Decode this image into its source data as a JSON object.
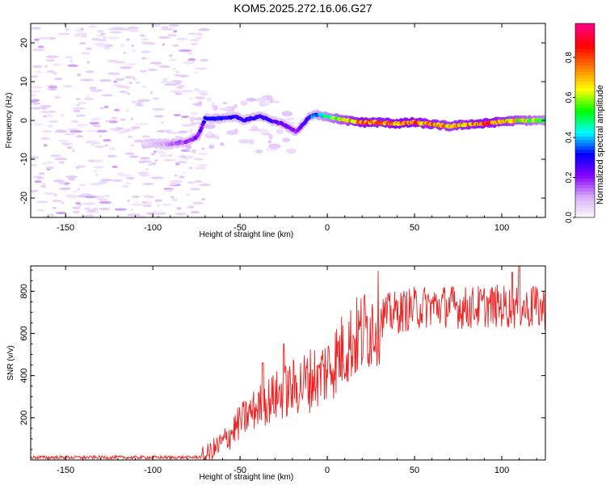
{
  "title": "KOM5.2025.272.16.06.G27",
  "chart_data": [
    {
      "type": "heatmap",
      "title": "KOM5.2025.272.16.06.G27",
      "xlabel": "Height of straight line (km)",
      "ylabel": "Frequency (Hz)",
      "xlim": [
        -170,
        125
      ],
      "ylim": [
        -25,
        25
      ],
      "xticks": [
        -150,
        -100,
        -50,
        0,
        50,
        100
      ],
      "yticks": [
        -20,
        -10,
        0,
        10,
        20
      ],
      "colorbar": {
        "label": "Normalized spectral amplitude",
        "range": [
          0,
          0.97
        ],
        "ticks": [
          0.0,
          0.2,
          0.4,
          0.6,
          0.8
        ],
        "colormap": [
          "#ffffff",
          "#d8b0f8",
          "#8800ff",
          "#0000ff",
          "#00ffff",
          "#00ff00",
          "#ffff00",
          "#ff8000",
          "#ff0000",
          "#ff0080"
        ]
      },
      "signal_track": {
        "x": [
          -105,
          -90,
          -80,
          -74,
          -70,
          -60,
          -52,
          -48,
          -44,
          -38,
          -32,
          -25,
          -18,
          -14,
          -10,
          -6,
          0,
          10,
          20,
          30,
          40,
          50,
          60,
          70,
          80,
          90,
          100,
          110,
          120,
          125
        ],
        "freq": [
          -6,
          -6,
          -5.5,
          -4,
          0.5,
          0.5,
          1,
          0,
          0.5,
          1,
          0,
          -1,
          -3,
          -1,
          1,
          1.5,
          1,
          0,
          -0.5,
          -0.5,
          -0.8,
          -0.5,
          -1,
          -1.5,
          -1,
          -0.8,
          -0.3,
          0,
          0,
          0
        ],
        "amplitude": [
          0.05,
          0.15,
          0.2,
          0.25,
          0.3,
          0.35,
          0.3,
          0.3,
          0.35,
          0.35,
          0.3,
          0.25,
          0.2,
          0.25,
          0.35,
          0.45,
          0.55,
          0.7,
          0.85,
          0.8,
          0.9,
          0.85,
          0.8,
          0.75,
          0.8,
          0.85,
          0.8,
          0.7,
          0.6,
          0.55
        ]
      }
    },
    {
      "type": "line",
      "title": "",
      "xlabel": "Height of straight line (km)",
      "ylabel": "SNR (v/v)",
      "xlim": [
        -170,
        125
      ],
      "ylim": [
        0,
        920
      ],
      "xticks": [
        -150,
        -100,
        -50,
        0,
        50,
        100
      ],
      "yticks": [
        200,
        400,
        600,
        800
      ],
      "series": [
        {
          "name": "SNR",
          "color": "#ee2222",
          "trend_x": [
            -170,
            -120,
            -80,
            -70,
            -60,
            -50,
            -40,
            -30,
            -20,
            -10,
            0,
            10,
            20,
            30,
            40,
            50,
            60,
            70,
            80,
            90,
            100,
            110,
            125
          ],
          "trend_y": [
            12,
            12,
            12,
            15,
            80,
            180,
            250,
            300,
            340,
            380,
            430,
            530,
            600,
            680,
            700,
            720,
            730,
            730,
            720,
            730,
            730,
            720,
            720
          ],
          "peaks": [
            [
              -25,
              550
            ],
            [
              -37,
              460
            ],
            [
              -5,
              450
            ],
            [
              110,
              920
            ],
            [
              106,
              890
            ],
            [
              118,
              820
            ]
          ]
        }
      ]
    }
  ]
}
